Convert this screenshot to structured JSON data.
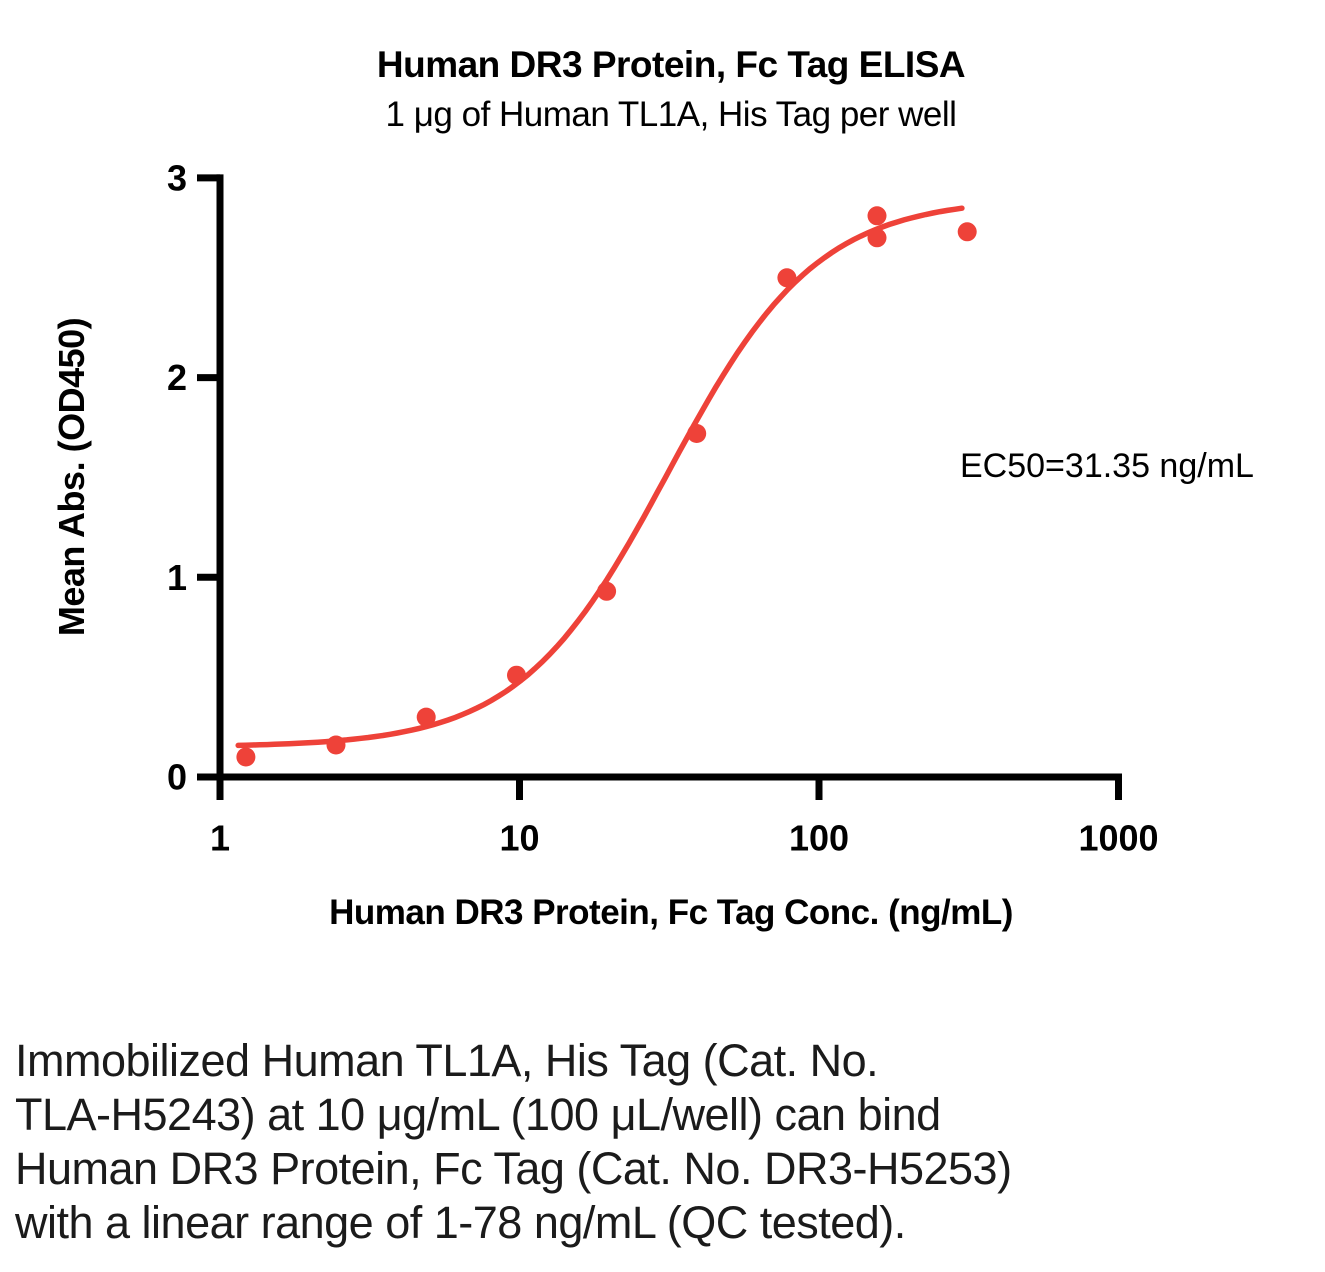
{
  "chart_data": {
    "type": "scatter",
    "title": "Human DR3 Protein, Fc Tag ELISA",
    "subtitle": "1 μg of Human TL1A, His Tag per well",
    "xlabel": "Human DR3 Protein, Fc Tag Conc. (ng/mL)",
    "ylabel": "Mean Abs. (OD450)",
    "annotation": "EC50=31.35 ng/mL",
    "ec50_ng_ml": 31.35,
    "x_scale": "log10",
    "xlim": [
      1,
      1000
    ],
    "ylim": [
      0,
      3
    ],
    "x_ticks": [
      1,
      10,
      100,
      1000
    ],
    "y_ticks": [
      0,
      1,
      2,
      3
    ],
    "grid": false,
    "legend": "none",
    "marker_color": "#EE4239",
    "line_color": "#EE4239",
    "series": [
      {
        "name": "Human DR3 Protein, Fc Tag",
        "points": [
          [
            1.22,
            0.1
          ],
          [
            2.44,
            0.16
          ],
          [
            4.88,
            0.3
          ],
          [
            9.77,
            0.51
          ],
          [
            19.53,
            0.93
          ],
          [
            39.06,
            1.72
          ],
          [
            78.13,
            2.5
          ],
          [
            156.25,
            2.81
          ],
          [
            156.25,
            2.7
          ],
          [
            312.5,
            2.73
          ]
        ]
      }
    ],
    "fit_curve": {
      "model": "4PL",
      "bottom": 0.15,
      "top": 2.9,
      "ec50": 31.35,
      "hill": 1.75,
      "x_range": [
        1.15,
        300
      ]
    }
  },
  "caption": {
    "lines": [
      "Immobilized Human TL1A, His Tag (Cat. No.",
      "TLA-H5243) at 10 μg/mL (100 μL/well) can bind",
      "Human DR3 Protein, Fc Tag (Cat. No. DR3-H5253)",
      "with a linear range of 1-78 ng/mL (QC tested)."
    ]
  }
}
